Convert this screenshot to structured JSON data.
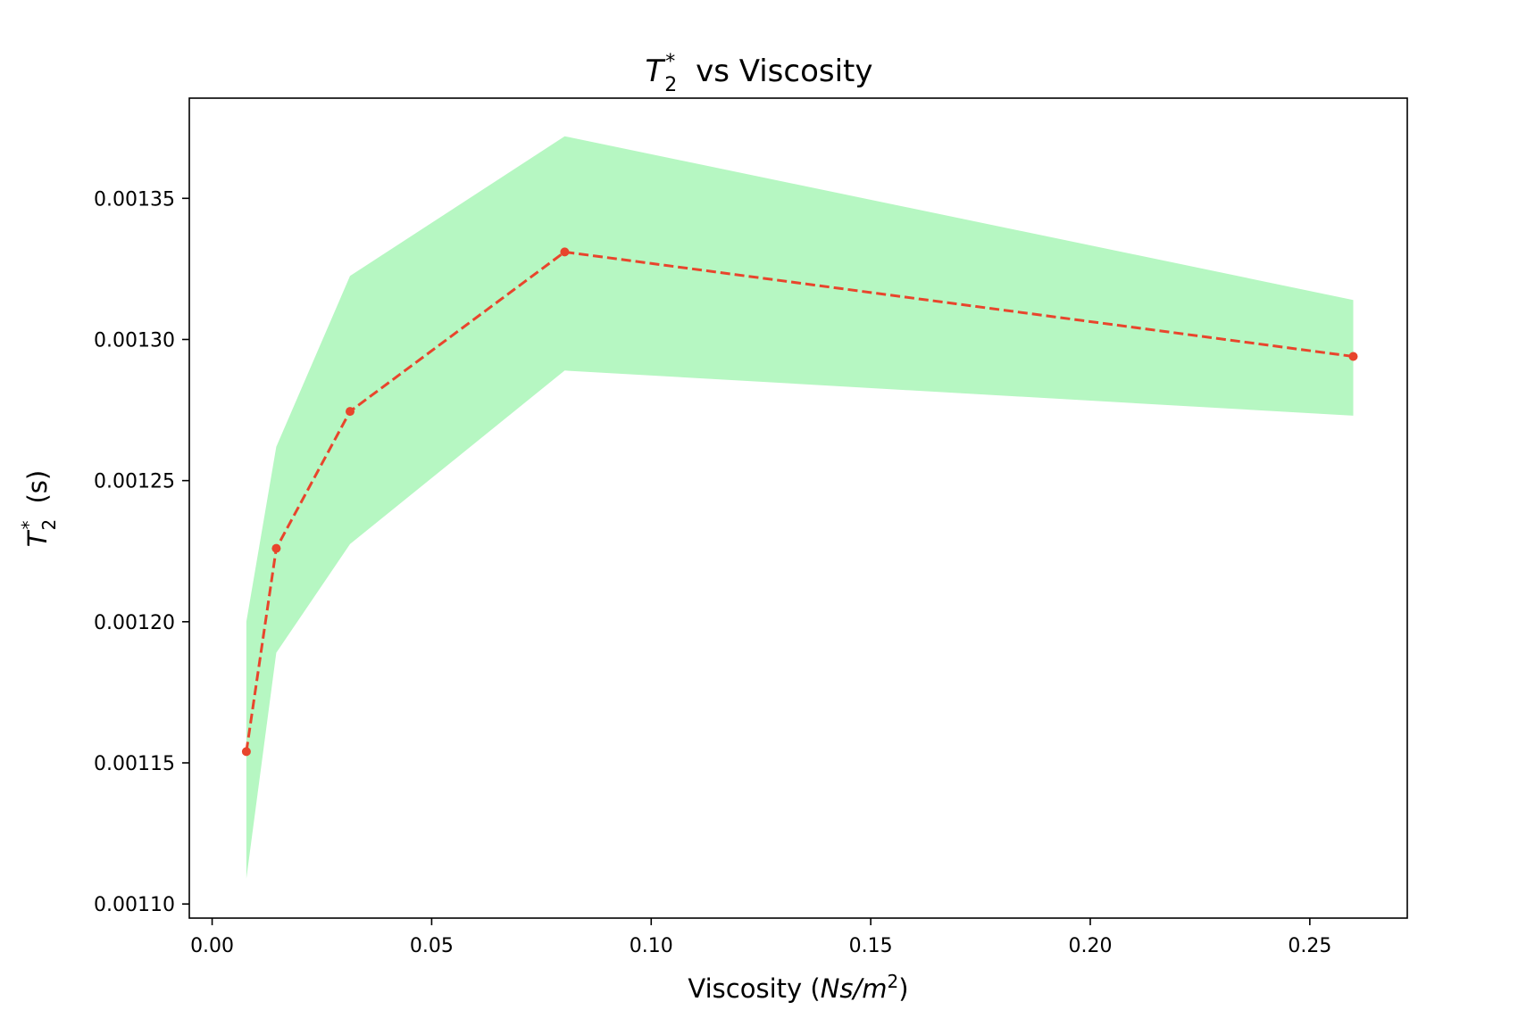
{
  "chart_data": {
    "type": "line",
    "title_var": "T",
    "title_sub": "2",
    "title_sup": "*",
    "title_rest": " vs Viscosity",
    "xlabel_text": "Viscosity (",
    "xlabel_var": "Ns/m",
    "xlabel_sup": "2",
    "xlabel_close": ")",
    "ylabel_var": "T",
    "ylabel_sub": "2",
    "ylabel_sup": "*",
    "ylabel_rest": " (s)",
    "xlim": [
      -0.0052,
      0.2722
    ],
    "ylim": [
      0.001095,
      0.0013855
    ],
    "xticks": [
      0.0,
      0.05,
      0.1,
      0.15,
      0.2,
      0.25
    ],
    "xtick_labels": [
      "0.00",
      "0.05",
      "0.10",
      "0.15",
      "0.20",
      "0.25"
    ],
    "yticks": [
      0.0011,
      0.00115,
      0.0012,
      0.00125,
      0.0013,
      0.00135
    ],
    "ytick_labels": [
      "0.00110",
      "0.00115",
      "0.00120",
      "0.00125",
      "0.00130",
      "0.00135"
    ],
    "grid": false,
    "series": [
      {
        "x": [
          0.0078,
          0.0146,
          0.0314,
          0.0803,
          0.2599
        ],
        "y": [
          0.001154,
          0.001226,
          0.0012745,
          0.001331,
          0.001294
        ],
        "lower": [
          0.001109,
          0.001189,
          0.0012275,
          0.001289,
          0.001273
        ],
        "upper": [
          0.0012,
          0.001262,
          0.0013225,
          0.001372,
          0.001314
        ],
        "color": "#e8452c",
        "band_color": "#b6f7c2",
        "linestyle": "dashed",
        "marker": "circle"
      }
    ]
  }
}
